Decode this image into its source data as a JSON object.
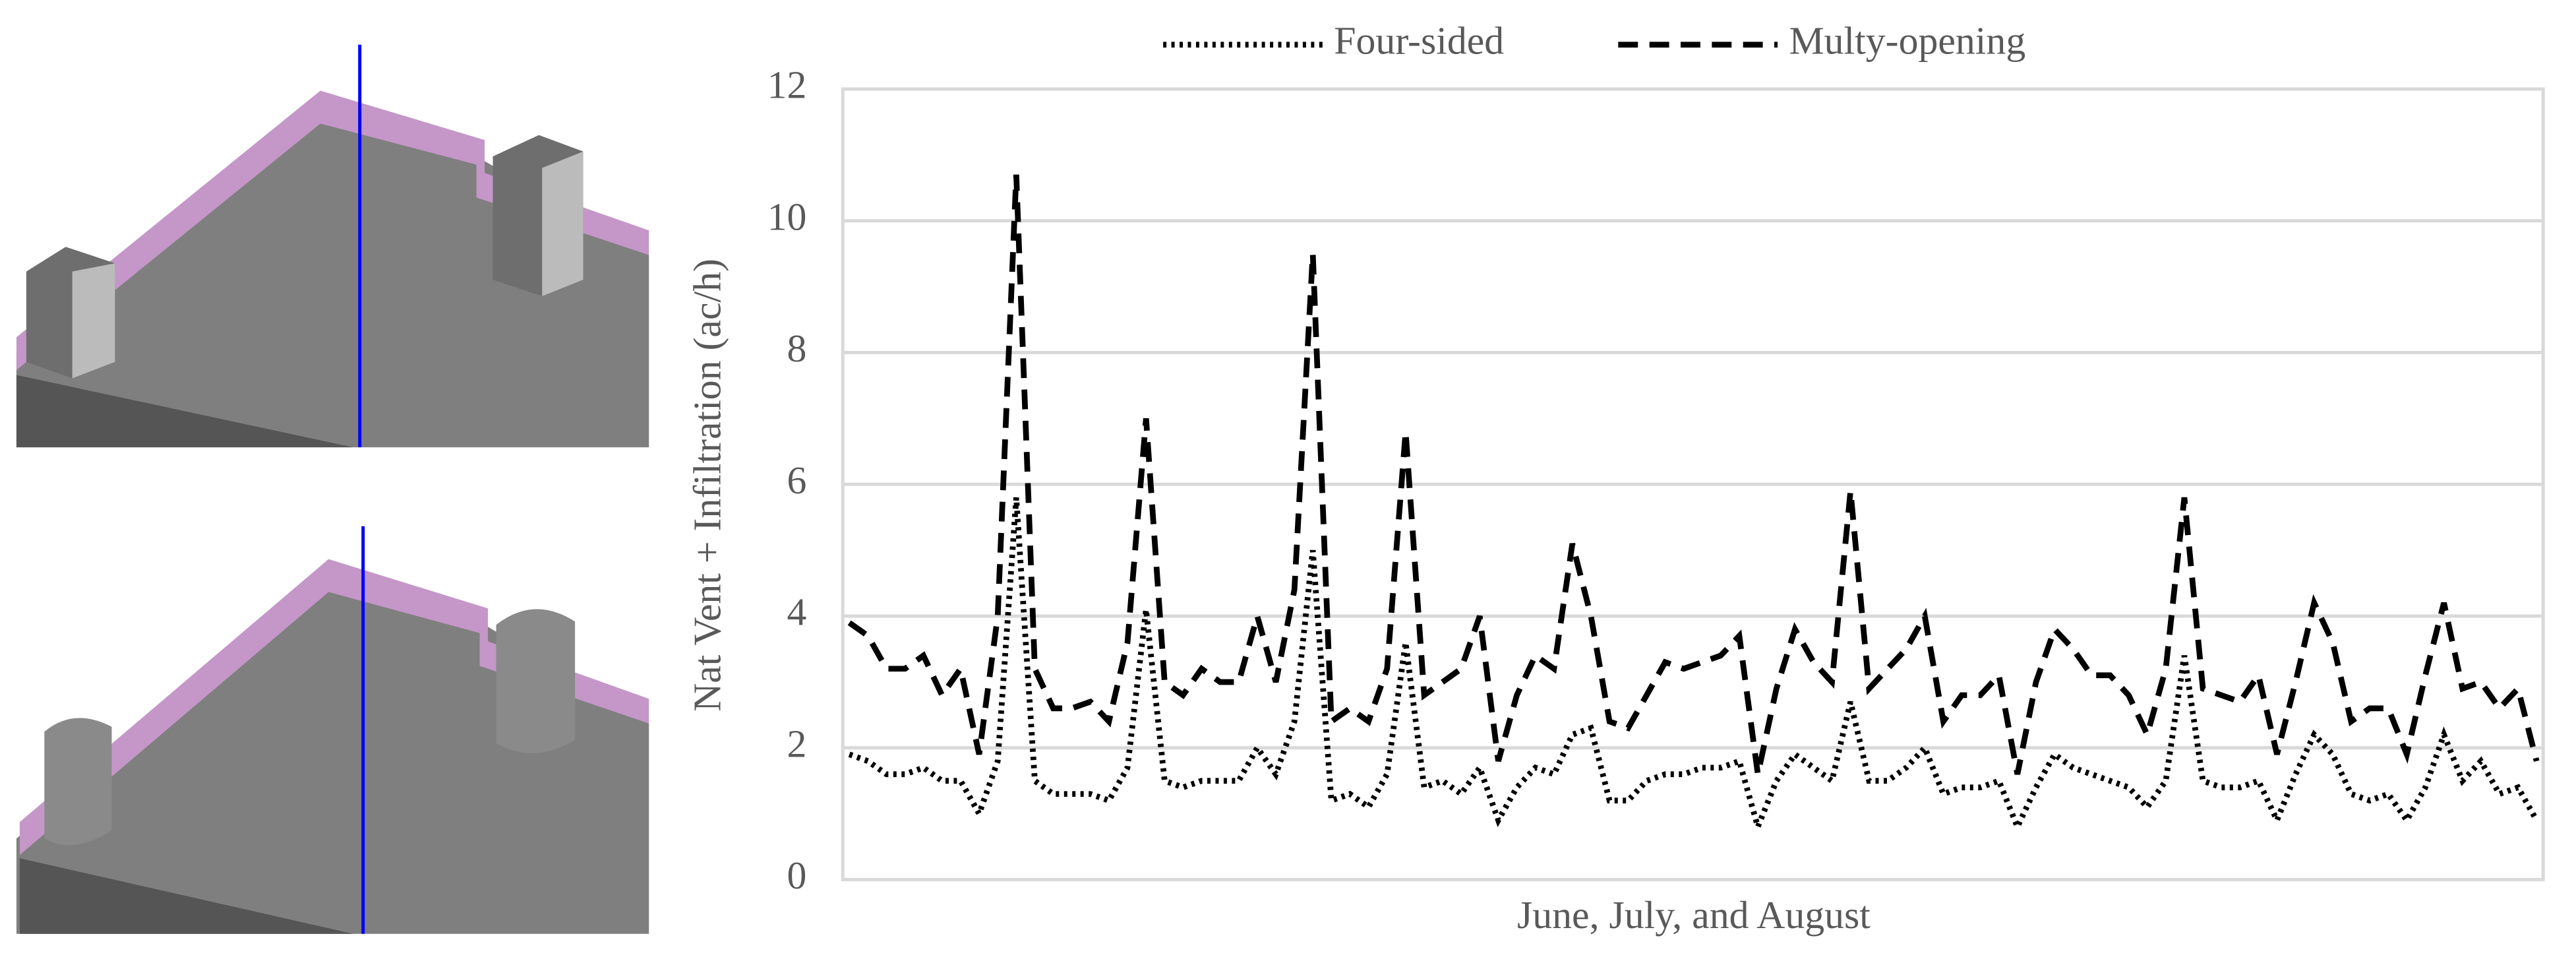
{
  "chart_data": {
    "type": "line",
    "y_label": "Nat Vent + Infiltration (ac/h)",
    "x_label": "June, July, and August",
    "ylim": [
      0,
      12
    ],
    "yticks": [
      0,
      2,
      4,
      6,
      8,
      10,
      12
    ],
    "grid": true,
    "legend": "top",
    "series": [
      {
        "name": "Four-sided",
        "color": "#000000",
        "dash": "dotted",
        "values": [
          1.9,
          1.8,
          1.6,
          1.6,
          1.7,
          1.5,
          1.5,
          1.0,
          1.8,
          5.8,
          1.5,
          1.3,
          1.3,
          1.3,
          1.2,
          1.7,
          4.1,
          1.5,
          1.4,
          1.5,
          1.5,
          1.5,
          2.0,
          1.6,
          2.4,
          5.0,
          1.2,
          1.3,
          1.1,
          1.6,
          3.6,
          1.4,
          1.5,
          1.3,
          1.7,
          0.9,
          1.4,
          1.7,
          1.6,
          2.2,
          2.3,
          1.2,
          1.2,
          1.5,
          1.6,
          1.6,
          1.7,
          1.7,
          1.8,
          0.8,
          1.5,
          1.9,
          1.7,
          1.5,
          2.7,
          1.5,
          1.5,
          1.7,
          2.0,
          1.3,
          1.4,
          1.4,
          1.5,
          0.8,
          1.4,
          1.9,
          1.7,
          1.6,
          1.5,
          1.4,
          1.1,
          1.5,
          3.4,
          1.5,
          1.4,
          1.4,
          1.5,
          0.9,
          1.6,
          2.2,
          1.9,
          1.3,
          1.2,
          1.3,
          0.9,
          1.4,
          2.2,
          1.5,
          1.8,
          1.3,
          1.4,
          0.9
        ]
      },
      {
        "name": "Multy-opening",
        "color": "#000000",
        "dash": "dashed",
        "values": [
          3.9,
          3.7,
          3.2,
          3.2,
          3.4,
          2.8,
          3.2,
          1.9,
          4.0,
          10.7,
          3.2,
          2.6,
          2.6,
          2.7,
          2.4,
          3.6,
          7.0,
          3.0,
          2.8,
          3.2,
          3.0,
          3.0,
          4.0,
          3.0,
          4.4,
          9.5,
          2.4,
          2.6,
          2.4,
          3.2,
          6.8,
          2.8,
          3.0,
          3.2,
          4.0,
          1.8,
          2.8,
          3.4,
          3.2,
          5.1,
          4.0,
          2.4,
          2.3,
          2.8,
          3.3,
          3.2,
          3.3,
          3.4,
          3.7,
          1.6,
          2.9,
          3.8,
          3.3,
          3.0,
          5.9,
          2.9,
          3.2,
          3.5,
          4.0,
          2.4,
          2.8,
          2.8,
          3.1,
          1.6,
          3.0,
          3.8,
          3.5,
          3.1,
          3.1,
          2.8,
          2.2,
          3.2,
          5.8,
          2.9,
          2.8,
          2.7,
          3.1,
          1.9,
          3.0,
          4.2,
          3.6,
          2.4,
          2.6,
          2.6,
          1.9,
          3.1,
          4.2,
          2.9,
          3.0,
          2.6,
          2.9,
          1.8
        ]
      }
    ]
  }
}
